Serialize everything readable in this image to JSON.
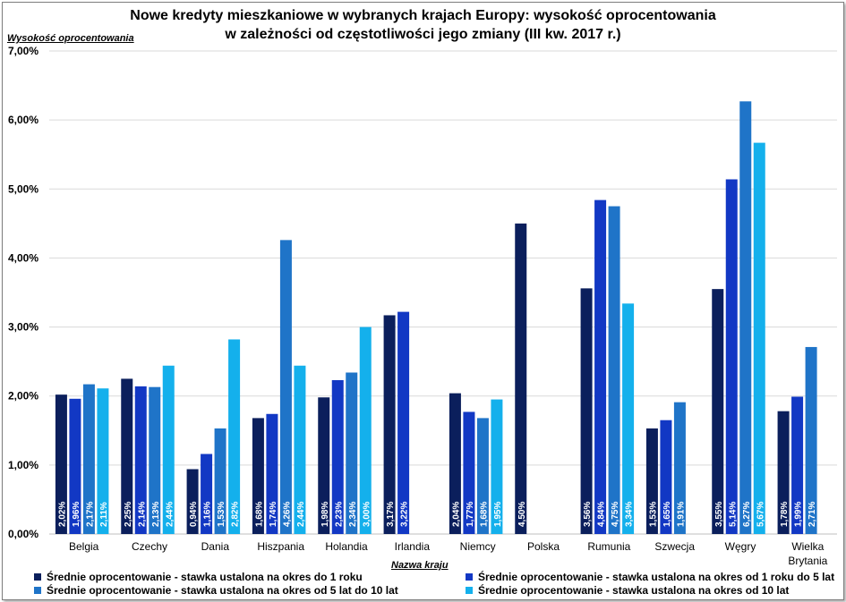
{
  "chart_data": {
    "type": "bar",
    "title_line1": "Nowe kredyty mieszkaniowe w wybranych krajach Europy: wysokość oprocentowania",
    "title_line2": "w zależności od częstotliwości jego zmiany (III kw. 2017 r.)",
    "xlabel": "Nazwa kraju",
    "ylabel": "Wysokość oprocentowania",
    "ylim": [
      0,
      7
    ],
    "yticks": [
      "0,00%",
      "1,00%",
      "2,00%",
      "3,00%",
      "4,00%",
      "5,00%",
      "6,00%",
      "7,00%"
    ],
    "grid": true,
    "legend_position": "bottom",
    "categories": [
      "Belgia",
      "Czechy",
      "Dania",
      "Hiszpania",
      "Holandia",
      "Irlandia",
      "Niemcy",
      "Polska",
      "Rumunia",
      "Szwecja",
      "Węgry",
      "Wielka Brytania"
    ],
    "series": [
      {
        "name": "Średnie oprocentowanie - stawka ustalona na okres do 1 roku",
        "color": "#0b1f5c",
        "values": [
          2.02,
          2.25,
          0.94,
          1.68,
          1.98,
          3.17,
          2.04,
          4.5,
          3.56,
          1.53,
          3.55,
          1.78
        ]
      },
      {
        "name": "Średnie oprocentowanie - stawka ustalona na okres od 1 roku do 5 lat",
        "color": "#1238c4",
        "values": [
          1.96,
          2.14,
          1.16,
          1.74,
          2.23,
          3.22,
          1.77,
          null,
          4.84,
          1.65,
          5.14,
          1.99
        ]
      },
      {
        "name": "Średnie oprocentowanie - stawka ustalona na okres od 5 lat do 10 lat",
        "color": "#1f74c8",
        "values": [
          2.17,
          2.13,
          1.53,
          4.26,
          2.34,
          null,
          1.68,
          null,
          4.75,
          1.91,
          6.27,
          2.71
        ]
      },
      {
        "name": "Średnie oprocentowanie - stawka ustalona na okres od 10 lat",
        "color": "#14b0ec",
        "values": [
          2.11,
          2.44,
          2.82,
          2.44,
          3.0,
          null,
          1.95,
          null,
          3.34,
          null,
          5.67,
          null
        ]
      }
    ],
    "data_labels": [
      [
        "2,02%",
        "2,25%",
        "0,94%",
        "1,68%",
        "1,98%",
        "3,17%",
        "2,04%",
        "4,50%",
        "3,56%",
        "1,53%",
        "3,55%",
        "1,78%"
      ],
      [
        "1,96%",
        "2,14%",
        "1,16%",
        "1,74%",
        "2,23%",
        "3,22%",
        "1,77%",
        null,
        "4,84%",
        "1,65%",
        "5,14%",
        "1,99%"
      ],
      [
        "2,17%",
        "2,13%",
        "1,53%",
        "4,26%",
        "2,34%",
        null,
        "1,68%",
        null,
        "4,75%",
        "1,91%",
        "6,27%",
        "2,71%"
      ],
      [
        "2,11%",
        "2,44%",
        "2,82%",
        "2,44%",
        "3,00%",
        null,
        "1,95%",
        null,
        "3,34%",
        null,
        "5,67%",
        null
      ]
    ]
  }
}
